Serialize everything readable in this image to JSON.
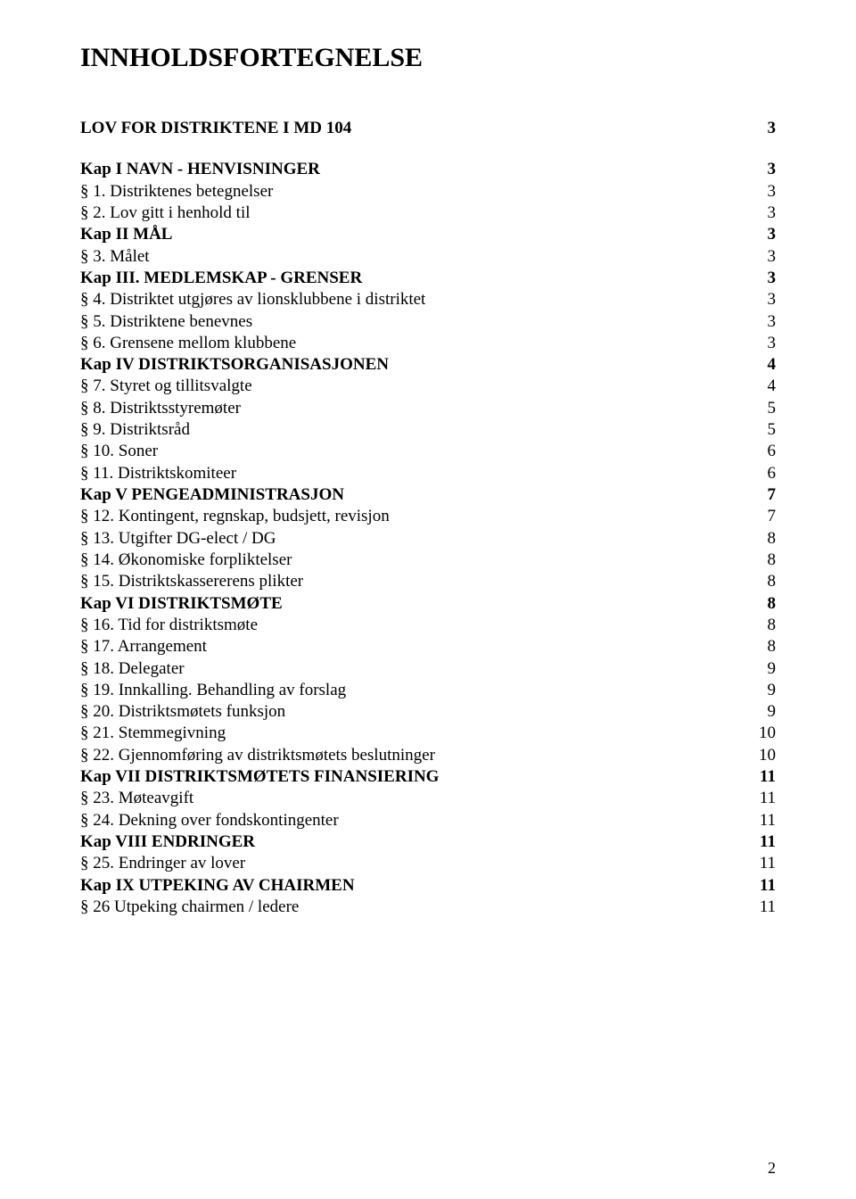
{
  "title": "INNHOLDSFORTEGNELSE",
  "page_number": "2",
  "colors": {
    "background": "#ffffff",
    "text": "#000000"
  },
  "typography": {
    "font_family": "Times New Roman",
    "title_fontsize": 30,
    "body_fontsize": 19
  },
  "toc": [
    {
      "type": "section",
      "label": "LOV FOR DISTRIKTENE I MD 104",
      "page": "3",
      "gap_before": true
    },
    {
      "type": "section",
      "label": "Kap I NAVN - HENVISNINGER",
      "page": "3",
      "gap_before": true
    },
    {
      "type": "entry",
      "label": "§ 1. Distriktenes betegnelser",
      "page": "3"
    },
    {
      "type": "entry",
      "label": "§ 2. Lov gitt i henhold til",
      "page": "3"
    },
    {
      "type": "section",
      "label": "Kap II MÅL",
      "page": "3"
    },
    {
      "type": "entry",
      "label": "§ 3. Målet",
      "page": "3"
    },
    {
      "type": "section",
      "label": "Kap III. MEDLEMSKAP - GRENSER",
      "page": "3"
    },
    {
      "type": "entry",
      "label": "§ 4. Distriktet utgjøres av lionsklubbene i distriktet",
      "page": "3"
    },
    {
      "type": "entry",
      "label": "§ 5. Distriktene benevnes",
      "page": "3"
    },
    {
      "type": "entry",
      "label": "§ 6. Grensene mellom klubbene",
      "page": "3"
    },
    {
      "type": "section",
      "label": "Kap IV DISTRIKTSORGANISASJONEN",
      "page": "4"
    },
    {
      "type": "entry",
      "label": "§ 7. Styret og tillitsvalgte",
      "page": "4"
    },
    {
      "type": "entry",
      "label": "§ 8. Distriktsstyremøter",
      "page": "5"
    },
    {
      "type": "entry",
      "label": "§ 9. Distriktsråd",
      "page": "5"
    },
    {
      "type": "entry",
      "label": "§ 10. Soner",
      "page": "6"
    },
    {
      "type": "entry",
      "label": "§ 11. Distriktskomiteer",
      "page": "6"
    },
    {
      "type": "section",
      "label": "Kap V PENGEADMINISTRASJON",
      "page": "7"
    },
    {
      "type": "entry",
      "label": "§ 12. Kontingent, regnskap, budsjett, revisjon",
      "page": "7"
    },
    {
      "type": "entry",
      "label": "§ 13. Utgifter DG-elect / DG",
      "page": "8"
    },
    {
      "type": "entry",
      "label": "§ 14. Økonomiske forpliktelser",
      "page": "8"
    },
    {
      "type": "entry",
      "label": "§ 15. Distriktskassererens plikter",
      "page": "8"
    },
    {
      "type": "section",
      "label": "Kap VI DISTRIKTSMØTE",
      "page": "8"
    },
    {
      "type": "entry",
      "label": "§ 16. Tid for distriktsmøte",
      "page": "8"
    },
    {
      "type": "entry",
      "label": "§ 17. Arrangement",
      "page": "8"
    },
    {
      "type": "entry",
      "label": "§ 18. Delegater",
      "page": "9"
    },
    {
      "type": "entry",
      "label": "§ 19. Innkalling. Behandling av forslag",
      "page": "9"
    },
    {
      "type": "entry",
      "label": "§ 20. Distriktsmøtets funksjon",
      "page": "9"
    },
    {
      "type": "entry",
      "label": "§ 21. Stemmegivning",
      "page": "10"
    },
    {
      "type": "entry",
      "label": "§ 22. Gjennomføring av distriktsmøtets beslutninger",
      "page": "10"
    },
    {
      "type": "section",
      "label": "Kap VII DISTRIKTSMØTETS FINANSIERING",
      "page": "11"
    },
    {
      "type": "entry",
      "label": "§ 23. Møteavgift",
      "page": "11"
    },
    {
      "type": "entry",
      "label": "§ 24. Dekning over fondskontingenter",
      "page": "11"
    },
    {
      "type": "section",
      "label": "Kap VIII ENDRINGER",
      "page": "11"
    },
    {
      "type": "entry",
      "label": "§ 25. Endringer av lover",
      "page": "11"
    },
    {
      "type": "section",
      "label": "Kap IX UTPEKING AV CHAIRMEN",
      "page": "11"
    },
    {
      "type": "entry",
      "label": "§ 26 Utpeking chairmen / ledere",
      "page": "11"
    }
  ]
}
